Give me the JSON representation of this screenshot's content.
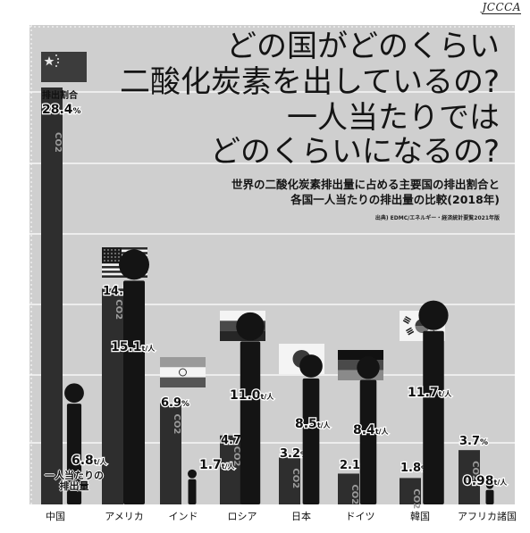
{
  "logo": "JCCCA",
  "title_lines": [
    "どの国がどのくらい",
    "二酸化炭素を出しているの?",
    "一人当たりでは",
    "どのくらいになるの?"
  ],
  "subtitle_lines": [
    "世界の二酸化炭素排出量に占める主要国の排出割合と",
    "各国一人当たりの排出量の比較(2018年)"
  ],
  "source": "出典) EDMC/エネルギー・経済統計要覧2021年版",
  "share_caption": "排出割合",
  "per_capita_caption": [
    "一人当たりの",
    "排出量"
  ],
  "co2_label": "CO2",
  "per_capita_unit": "t/人",
  "share_unit": "%",
  "colors": {
    "background": "#cfcfcf",
    "bar": "#2e2e2e",
    "person": "#141414",
    "gridline": "#ffffff"
  },
  "chart_data": {
    "type": "bar",
    "categories": [
      "中国",
      "アメリカ",
      "インド",
      "ロシア",
      "日本",
      "ドイツ",
      "韓国",
      "アフリカ諸国"
    ],
    "series": [
      {
        "values": [
          28.4,
          14.7,
          6.9,
          4.7,
          3.2,
          2.1,
          1.8,
          3.7
        ],
        "unit": "%"
      },
      {
        "values": [
          6.8,
          15.1,
          1.7,
          11.0,
          8.5,
          8.4,
          11.7,
          0.98
        ],
        "unit": "t/人"
      }
    ],
    "bar_labels": [
      "28.4%",
      "14.7%",
      "6.9%",
      "4.7%",
      "3.2%",
      "2.1%",
      "1.8%",
      "3.7%"
    ],
    "person_labels": [
      "6.8",
      "15.1",
      "1.7",
      "11.0",
      "8.5",
      "8.4",
      "11.7",
      "0.98"
    ],
    "flags": [
      "china-flag",
      "usa-flag",
      "india-flag",
      "russia-flag",
      "japan-flag",
      "germany-flag",
      "korea-flag",
      null
    ],
    "grid": true,
    "legend": "none"
  }
}
